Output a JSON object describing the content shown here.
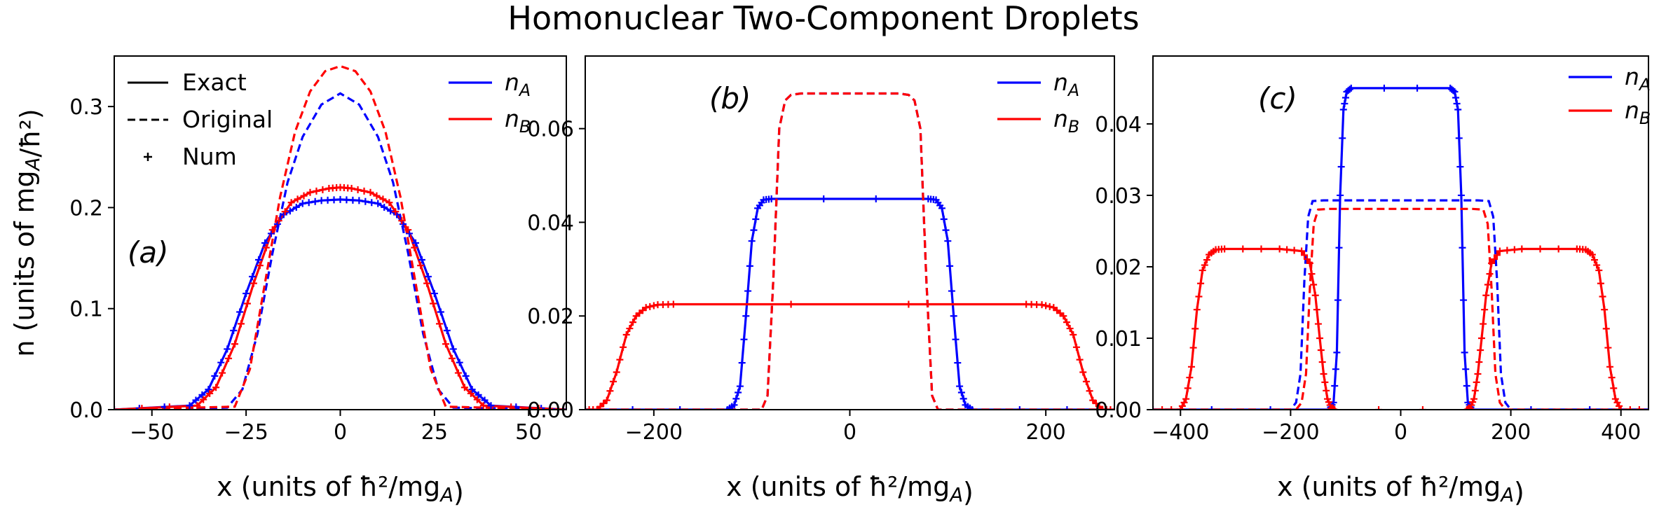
{
  "figure": {
    "title": "Homonuclear Two-Component Droplets",
    "colors": {
      "A": "#0000ff",
      "B": "#ff0000"
    }
  },
  "chart_data": [
    {
      "type": "line",
      "panel": "(a)",
      "title": "",
      "xlabel": "x (units of ħ²/mg_A)",
      "ylabel": "n (units of mg_A/ħ²)",
      "xlim": [
        -60,
        60
      ],
      "ylim": [
        0,
        0.35
      ],
      "xticks": [
        -50,
        -25,
        0,
        25,
        50
      ],
      "yticks": [
        0.0,
        0.1,
        0.2,
        0.3
      ],
      "ytick_labels": [
        "0.0",
        "0.1",
        "0.2",
        "0.3"
      ],
      "grid": false,
      "legend_styles": [
        "Exact",
        "Original",
        "Num"
      ],
      "legend_series": [
        "n_A",
        "n_B"
      ],
      "series": [
        {
          "name": "n_A",
          "style": "Exact",
          "x": [
            -60,
            -40,
            -35,
            -30,
            -25,
            -20,
            -15,
            -10,
            -5,
            0,
            5,
            10,
            15,
            20,
            25,
            30,
            35,
            40,
            60
          ],
          "y": [
            0,
            0.004,
            0.02,
            0.06,
            0.115,
            0.165,
            0.193,
            0.204,
            0.207,
            0.208,
            0.207,
            0.204,
            0.193,
            0.165,
            0.115,
            0.06,
            0.02,
            0.004,
            0
          ]
        },
        {
          "name": "n_B",
          "style": "Exact",
          "x": [
            -60,
            -38,
            -33,
            -28,
            -23,
            -18,
            -13,
            -8,
            -3,
            0,
            3,
            8,
            13,
            18,
            23,
            28,
            33,
            38,
            60
          ],
          "y": [
            0,
            0.004,
            0.022,
            0.065,
            0.125,
            0.178,
            0.205,
            0.215,
            0.219,
            0.22,
            0.219,
            0.215,
            0.205,
            0.178,
            0.125,
            0.065,
            0.022,
            0.004,
            0
          ]
        },
        {
          "name": "n_A",
          "style": "Original",
          "x": [
            -60,
            -30,
            -26,
            -22,
            -18,
            -14,
            -10,
            -5,
            0,
            5,
            10,
            14,
            18,
            22,
            26,
            30,
            60
          ],
          "y": [
            0,
            0.002,
            0.02,
            0.075,
            0.155,
            0.225,
            0.27,
            0.302,
            0.313,
            0.302,
            0.27,
            0.225,
            0.155,
            0.075,
            0.02,
            0.002,
            0
          ]
        },
        {
          "name": "n_B",
          "style": "Original",
          "x": [
            -60,
            -28,
            -24,
            -20,
            -16,
            -12,
            -8,
            -4,
            0,
            4,
            8,
            12,
            16,
            20,
            24,
            28,
            60
          ],
          "y": [
            0,
            0.003,
            0.04,
            0.125,
            0.21,
            0.275,
            0.315,
            0.335,
            0.34,
            0.335,
            0.315,
            0.275,
            0.21,
            0.125,
            0.04,
            0.003,
            0
          ]
        },
        {
          "name": "n_A",
          "style": "Num",
          "x": [
            -60,
            -40,
            -35,
            -30,
            -25,
            -20,
            -15,
            -10,
            -5,
            0,
            5,
            10,
            15,
            20,
            25,
            30,
            35,
            40,
            60
          ],
          "y": [
            0,
            0.004,
            0.02,
            0.06,
            0.115,
            0.165,
            0.193,
            0.204,
            0.207,
            0.208,
            0.207,
            0.204,
            0.193,
            0.165,
            0.115,
            0.06,
            0.02,
            0.004,
            0
          ]
        },
        {
          "name": "n_B",
          "style": "Num",
          "x": [
            -60,
            -38,
            -33,
            -28,
            -23,
            -18,
            -13,
            -8,
            -3,
            0,
            3,
            8,
            13,
            18,
            23,
            28,
            33,
            38,
            60
          ],
          "y": [
            0,
            0.004,
            0.022,
            0.065,
            0.125,
            0.178,
            0.205,
            0.215,
            0.219,
            0.22,
            0.219,
            0.215,
            0.205,
            0.178,
            0.125,
            0.065,
            0.022,
            0.004,
            0
          ]
        }
      ]
    },
    {
      "type": "line",
      "panel": "(b)",
      "title": "",
      "xlabel": "x (units of ħ²/mg_A)",
      "ylabel": "",
      "xlim": [
        -270,
        270
      ],
      "ylim": [
        0,
        0.0755
      ],
      "xticks": [
        -200,
        0,
        200
      ],
      "yticks": [
        0.0,
        0.02,
        0.04,
        0.06
      ],
      "ytick_labels": [
        "0.00",
        "0.02",
        "0.04",
        "0.06"
      ],
      "grid": false,
      "legend_series": [
        "n_A",
        "n_B"
      ],
      "series": [
        {
          "name": "n_A",
          "style": "Exact",
          "x": [
            -270,
            -125,
            -118,
            -112,
            -106,
            -100,
            -94,
            -88,
            -80,
            80,
            88,
            94,
            100,
            106,
            112,
            118,
            125,
            270
          ],
          "y": [
            0,
            0,
            0.001,
            0.005,
            0.02,
            0.036,
            0.043,
            0.0448,
            0.045,
            0.045,
            0.0448,
            0.043,
            0.036,
            0.02,
            0.005,
            0.001,
            0,
            0
          ]
        },
        {
          "name": "n_B",
          "style": "Exact",
          "x": [
            -270,
            -258,
            -248,
            -238,
            -228,
            -218,
            -208,
            -196,
            -180,
            180,
            196,
            208,
            218,
            228,
            238,
            248,
            258,
            270
          ],
          "y": [
            0,
            0,
            0.002,
            0.008,
            0.016,
            0.02,
            0.0218,
            0.0224,
            0.0225,
            0.0225,
            0.0224,
            0.0218,
            0.02,
            0.016,
            0.008,
            0.002,
            0,
            0
          ]
        },
        {
          "name": "n_A",
          "style": "Original",
          "x": [
            -270,
            -90,
            -84,
            -78,
            -72,
            -66,
            -60,
            -50,
            50,
            60,
            66,
            72,
            78,
            84,
            90,
            270
          ],
          "y": [
            0,
            0,
            0.003,
            0.028,
            0.06,
            0.066,
            0.0672,
            0.0675,
            0.0675,
            0.0672,
            0.066,
            0.06,
            0.028,
            0.003,
            0,
            0
          ]
        },
        {
          "name": "n_B",
          "style": "Original",
          "x": [
            -270,
            -90,
            -84,
            -78,
            -72,
            -66,
            -60,
            -50,
            50,
            60,
            66,
            72,
            78,
            84,
            90,
            270
          ],
          "y": [
            0,
            0,
            0.003,
            0.028,
            0.06,
            0.066,
            0.0672,
            0.0675,
            0.0675,
            0.0672,
            0.066,
            0.06,
            0.028,
            0.003,
            0,
            0
          ]
        },
        {
          "name": "n_A",
          "style": "Num",
          "x": [
            -270,
            -125,
            -118,
            -112,
            -106,
            -100,
            -94,
            -88,
            -80,
            80,
            88,
            94,
            100,
            106,
            112,
            118,
            125,
            270
          ],
          "y": [
            0,
            0,
            0.001,
            0.005,
            0.02,
            0.036,
            0.043,
            0.0448,
            0.045,
            0.045,
            0.0448,
            0.043,
            0.036,
            0.02,
            0.005,
            0.001,
            0,
            0
          ]
        },
        {
          "name": "n_B",
          "style": "Num",
          "x": [
            -270,
            -258,
            -248,
            -238,
            -228,
            -218,
            -208,
            -196,
            -180,
            180,
            196,
            208,
            218,
            228,
            238,
            248,
            258,
            270
          ],
          "y": [
            0,
            0,
            0.002,
            0.008,
            0.016,
            0.02,
            0.0218,
            0.0224,
            0.0225,
            0.0225,
            0.0224,
            0.0218,
            0.02,
            0.016,
            0.008,
            0.002,
            0,
            0
          ]
        }
      ]
    },
    {
      "type": "line",
      "panel": "(c)",
      "title": "",
      "xlabel": "x (units of ħ²/mg_A)",
      "ylabel": "",
      "xlim": [
        -450,
        450
      ],
      "ylim": [
        0,
        0.0495
      ],
      "xticks": [
        -400,
        -200,
        0,
        200,
        400
      ],
      "yticks": [
        0.0,
        0.01,
        0.02,
        0.03,
        0.04
      ],
      "ytick_labels": [
        "0.00",
        "0.01",
        "0.02",
        "0.03",
        "0.04"
      ],
      "grid": false,
      "legend_series": [
        "n_A",
        "n_B"
      ],
      "series": [
        {
          "name": "n_A",
          "style": "Exact",
          "x": [
            -450,
            -130,
            -122,
            -116,
            -110,
            -104,
            -98,
            -90,
            90,
            98,
            104,
            110,
            116,
            122,
            130,
            450
          ],
          "y": [
            0,
            0,
            0.001,
            0.008,
            0.03,
            0.042,
            0.0445,
            0.045,
            0.045,
            0.0445,
            0.042,
            0.03,
            0.008,
            0.001,
            0,
            0
          ]
        },
        {
          "name": "n_B",
          "style": "Exact",
          "x": [
            -450,
            -400,
            -390,
            -380,
            -370,
            -360,
            -348,
            -336,
            -320,
            -220,
            -180,
            -165,
            -155,
            -147,
            -140,
            -133,
            -126,
            -120,
            -450
          ],
          "y": [
            0,
            0,
            0.0015,
            0.006,
            0.014,
            0.0195,
            0.0217,
            0.0224,
            0.0225,
            0.0225,
            0.0222,
            0.0205,
            0.016,
            0.01,
            0.005,
            0.0015,
            0.0002,
            0,
            0
          ]
        },
        {
          "name": "n_B",
          "style": "Exact",
          "x": [
            120,
            126,
            133,
            140,
            147,
            155,
            165,
            180,
            220,
            320,
            336,
            348,
            360,
            370,
            380,
            390,
            400,
            450
          ],
          "y": [
            0,
            0.0002,
            0.0015,
            0.005,
            0.01,
            0.016,
            0.0205,
            0.0222,
            0.0225,
            0.0225,
            0.0224,
            0.0217,
            0.0195,
            0.014,
            0.006,
            0.0015,
            0,
            0
          ]
        },
        {
          "name": "n_A",
          "style": "Original",
          "x": [
            -450,
            -200,
            -190,
            -182,
            -175,
            -168,
            -160,
            -140,
            140,
            160,
            168,
            175,
            182,
            190,
            200,
            450
          ],
          "y": [
            0,
            0,
            0.001,
            0.005,
            0.018,
            0.027,
            0.0292,
            0.0293,
            0.0293,
            0.0292,
            0.027,
            0.018,
            0.005,
            0.001,
            0,
            0
          ]
        },
        {
          "name": "n_B",
          "style": "Original",
          "x": [
            -450,
            -190,
            -180,
            -172,
            -165,
            -158,
            -150,
            -130,
            130,
            150,
            158,
            165,
            172,
            180,
            190,
            450
          ],
          "y": [
            0,
            0,
            0.001,
            0.005,
            0.017,
            0.026,
            0.028,
            0.0281,
            0.0281,
            0.028,
            0.026,
            0.017,
            0.005,
            0.001,
            0,
            0
          ]
        },
        {
          "name": "n_A",
          "style": "Num",
          "x": [
            -450,
            -130,
            -122,
            -116,
            -110,
            -104,
            -98,
            -90,
            90,
            98,
            104,
            110,
            116,
            122,
            130,
            450
          ],
          "y": [
            0,
            0,
            0.001,
            0.008,
            0.03,
            0.042,
            0.0445,
            0.045,
            0.045,
            0.0445,
            0.042,
            0.03,
            0.008,
            0.001,
            0,
            0
          ]
        },
        {
          "name": "n_B",
          "style": "Num",
          "x": [
            -450,
            -400,
            -390,
            -380,
            -370,
            -360,
            -348,
            -336,
            -320,
            -220,
            -180,
            -165,
            -155,
            -147,
            -140,
            -133,
            -126,
            -120,
            120,
            126,
            133,
            140,
            147,
            155,
            165,
            180,
            220,
            320,
            336,
            348,
            360,
            370,
            380,
            390,
            400,
            450
          ],
          "y": [
            0,
            0,
            0.0015,
            0.006,
            0.014,
            0.0195,
            0.0217,
            0.0224,
            0.0225,
            0.0225,
            0.0222,
            0.0205,
            0.016,
            0.01,
            0.005,
            0.0015,
            0.0002,
            0,
            0,
            0.0002,
            0.0015,
            0.005,
            0.01,
            0.016,
            0.0205,
            0.0222,
            0.0225,
            0.0225,
            0.0224,
            0.0217,
            0.0195,
            0.014,
            0.006,
            0.0015,
            0,
            0
          ]
        }
      ]
    }
  ]
}
